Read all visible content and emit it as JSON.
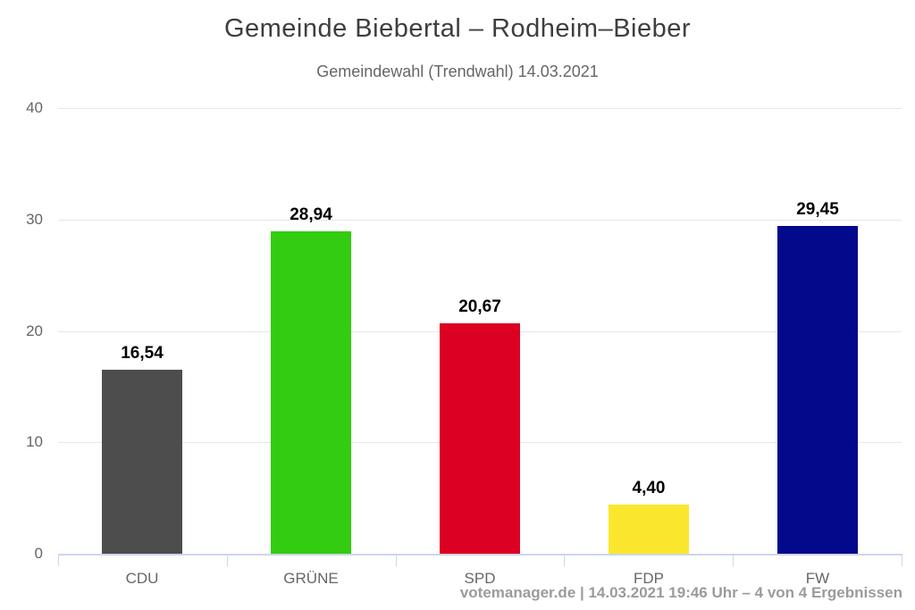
{
  "chart_data": {
    "type": "bar",
    "title": "Gemeinde Biebertal – Rodheim–Bieber",
    "subtitle": "Gemeindewahl (Trendwahl) 14.03.2021",
    "categories": [
      "CDU",
      "GRÜNE",
      "SPD",
      "FDP",
      "FW"
    ],
    "values": [
      16.54,
      28.94,
      20.67,
      4.4,
      29.45
    ],
    "value_labels": [
      "16,54",
      "28,94",
      "20,67",
      "4,40",
      "29,45"
    ],
    "bar_colors": [
      "#4d4d4d",
      "#33cc11",
      "#dc0023",
      "#fae72d",
      "#03098b"
    ],
    "ylim": [
      0,
      40
    ],
    "yticks": [
      0,
      10,
      20,
      30,
      40
    ],
    "ytick_labels": [
      "0",
      "10",
      "20",
      "30",
      "40"
    ],
    "xlabel": "",
    "ylabel": "",
    "grid": true,
    "legend_position": "none",
    "credits": "votemanager.de | 14.03.2021 19:46 Uhr – 4 von 4 Ergebnissen"
  },
  "colors": {
    "background": "#ffffff",
    "title": "#3e3e3e",
    "subtitle": "#666666",
    "axis_text": "#666666",
    "gridline": "#e6e6e6",
    "axis_line": "#ccd6eb",
    "value_label": "#000000",
    "credits": "#9b9b9b"
  }
}
